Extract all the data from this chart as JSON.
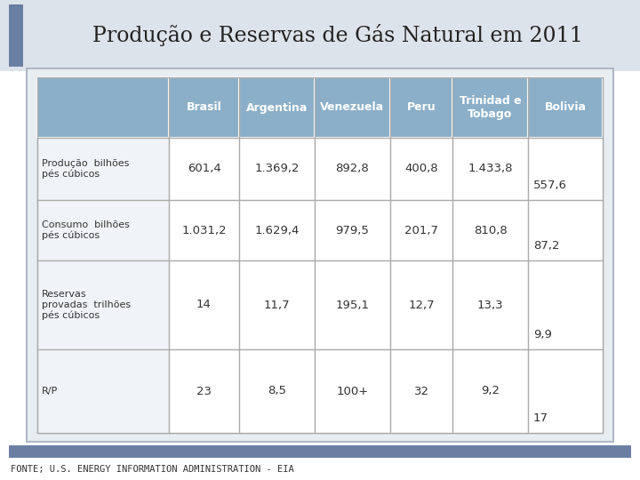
{
  "title": "Produção e Reservas de Gás Natural em 2011",
  "title_fontsize": 17,
  "columns": [
    "",
    "Brasil",
    "Argentina",
    "Venezuela",
    "Peru",
    "Trinidad e\nTobago",
    "Bolivia"
  ],
  "rows": [
    {
      "label": "Produção  bilhões\npés cúbicos",
      "values": [
        "601,4",
        "1.369,2",
        "892,8",
        "400,8",
        "1.433,8",
        "557,6"
      ]
    },
    {
      "label": "Consumo  bilhões\npés cúbicos",
      "values": [
        "1.031,2",
        "1.629,4",
        "979,5",
        "201,7",
        "810,8",
        "87,2"
      ]
    },
    {
      "label": "Reservas\nprovadas  trilhões\npés cúbicos",
      "values": [
        "14",
        "11,7",
        "195,1",
        "12,7",
        "13,3",
        "9,9"
      ]
    },
    {
      "label": "R/P",
      "values": [
        "23",
        "8,5",
        "100+",
        "32",
        "9,2",
        "17"
      ]
    }
  ],
  "header_bg": "#8bafc8",
  "cell_bg": "#ffffff",
  "label_bg": "#f0f4f8",
  "outer_bg": "#e8edf2",
  "title_strip_bg": "#dde3ea",
  "accent_bar_color": "#6b7fa3",
  "header_text_color": "#ffffff",
  "cell_text_color": "#333333",
  "title_color": "#222222",
  "border_color": "#999999",
  "footer": "FONTE; U.S. ENERGY INFORMATION ADMINISTRATION - EIA",
  "footer_fontsize": 7.5
}
